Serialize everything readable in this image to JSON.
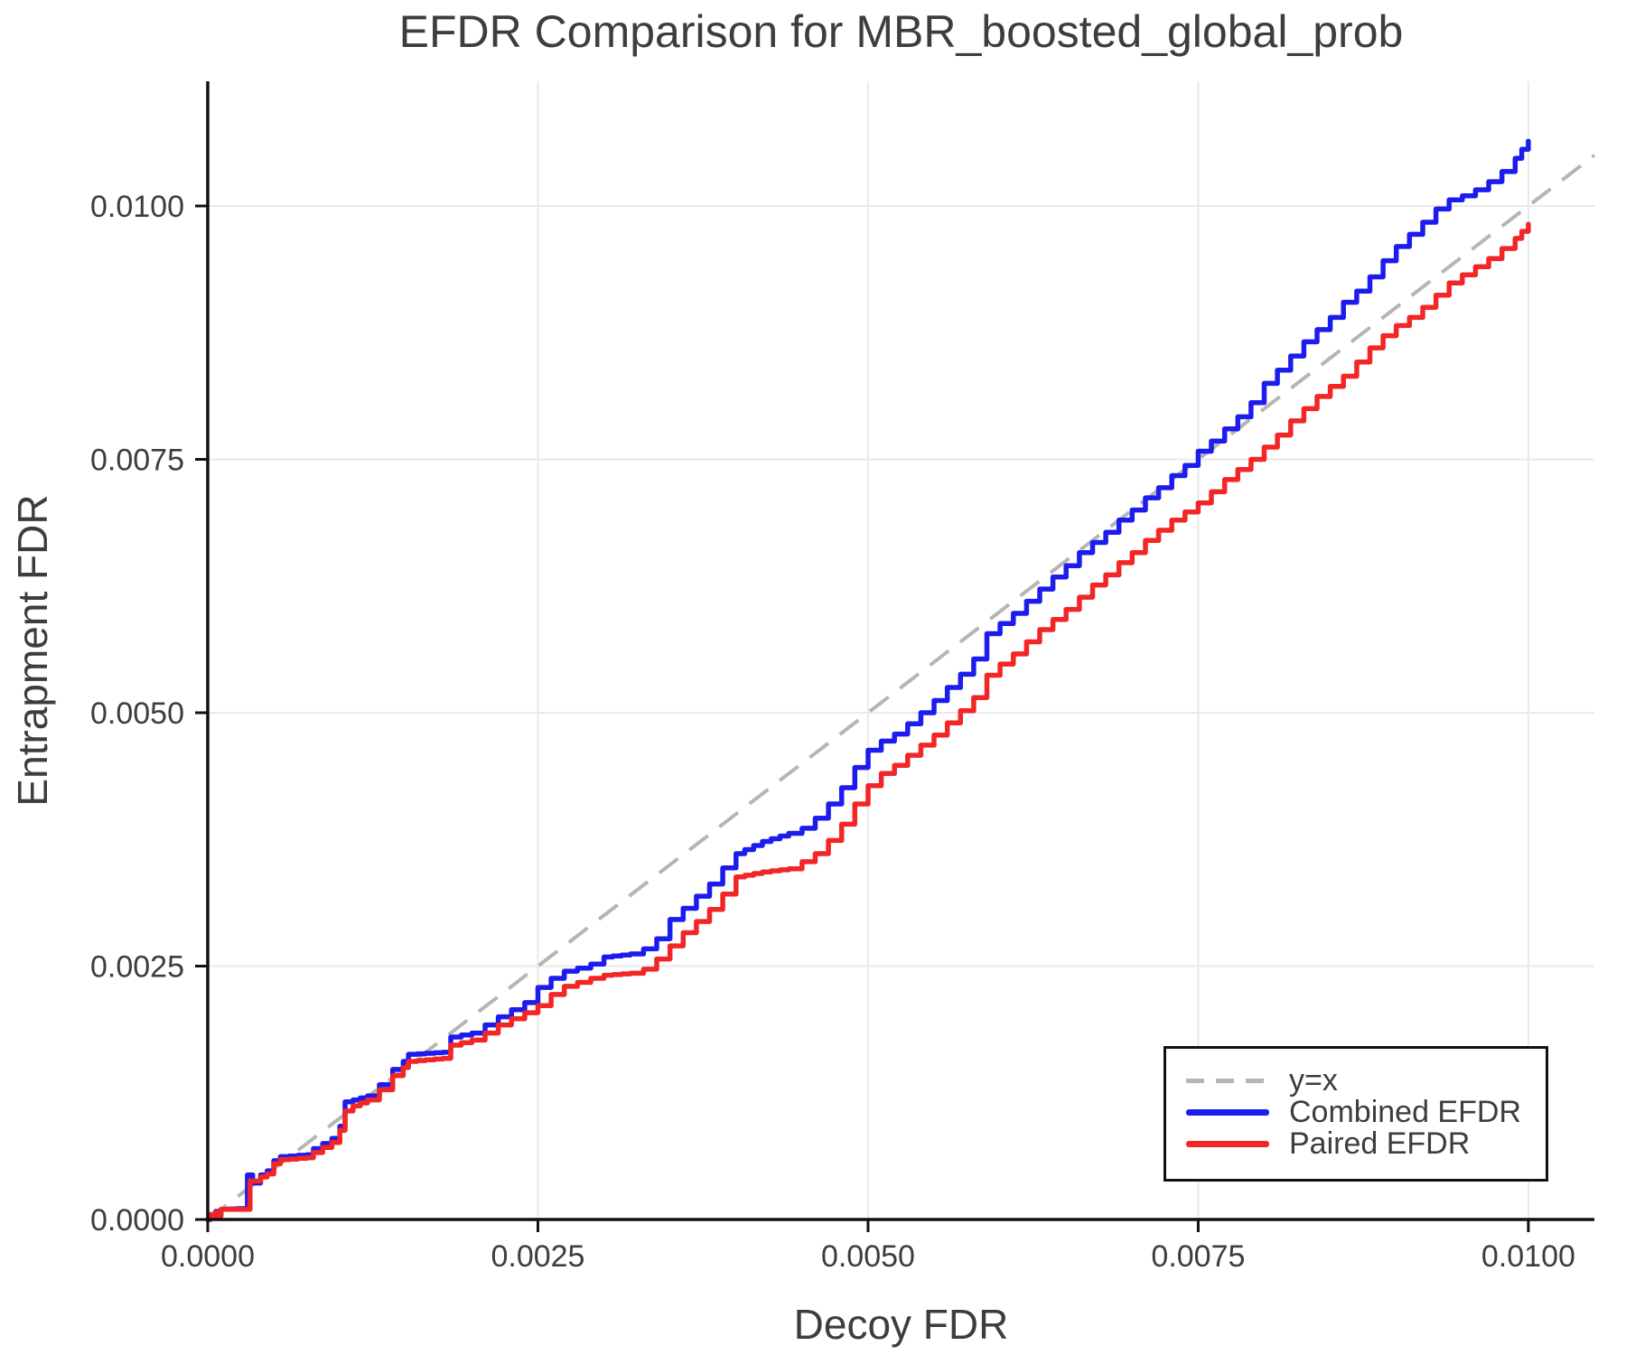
{
  "title": "EFDR Comparison for MBR_boosted_global_prob",
  "chart_data": {
    "type": "line",
    "title": "EFDR Comparison for MBR_boosted_global_prob",
    "xlabel": "Decoy FDR",
    "ylabel": "Entrapment FDR",
    "xlim": [
      0,
      0.0105
    ],
    "ylim": [
      0,
      0.01123
    ],
    "x_ticks": [
      0.0,
      0.0025,
      0.005,
      0.0075,
      0.01
    ],
    "x_tick_labels": [
      "0.0000",
      "0.0025",
      "0.0050",
      "0.0075",
      "0.0100"
    ],
    "y_ticks": [
      0.0,
      0.0025,
      0.005,
      0.0075,
      0.01
    ],
    "y_tick_labels": [
      "0.0000",
      "0.0025",
      "0.0050",
      "0.0075",
      "0.0100"
    ],
    "grid": true,
    "grid_color": "#e9e9e9",
    "legend_position": "lower right",
    "reference_line": {
      "label": "y=x",
      "style": "dashed",
      "color": "#b5b5b5",
      "from": [
        0,
        0
      ],
      "to": [
        0.0105,
        0.0105
      ]
    },
    "series": [
      {
        "name": "Combined EFDR",
        "color": "#1c1cee",
        "points": [
          [
            0,
            0
          ],
          [
            2e-05,
            4e-05
          ],
          [
            4e-05,
            2e-05
          ],
          [
            6e-05,
            8e-05
          ],
          [
            8e-05,
            4e-05
          ],
          [
            0.0001,
            0.0001
          ],
          [
            0.00028,
            0.00011
          ],
          [
            0.0003,
            0.00044
          ],
          [
            0.00034,
            0.00036
          ],
          [
            0.0004,
            0.00044
          ],
          [
            0.00045,
            0.00048
          ],
          [
            0.0005,
            0.00058
          ],
          [
            0.00055,
            0.00062
          ],
          [
            0.00075,
            0.00064
          ],
          [
            0.0008,
            0.0007
          ],
          [
            0.00094,
            0.0008
          ],
          [
            0.001,
            0.00092
          ],
          [
            0.00104,
            0.00116
          ],
          [
            0.0011,
            0.00118
          ],
          [
            0.00121,
            0.00122
          ],
          [
            0.0013,
            0.00133
          ],
          [
            0.0014,
            0.00148
          ],
          [
            0.00148,
            0.00156
          ],
          [
            0.00152,
            0.00163
          ],
          [
            0.00178,
            0.00165
          ],
          [
            0.00184,
            0.0018
          ],
          [
            0.002,
            0.00184
          ],
          [
            0.0021,
            0.00192
          ],
          [
            0.0022,
            0.002
          ],
          [
            0.0023,
            0.00207
          ],
          [
            0.0024,
            0.00214
          ],
          [
            0.0025,
            0.00229
          ],
          [
            0.0026,
            0.00238
          ],
          [
            0.0027,
            0.00245
          ],
          [
            0.0028,
            0.00248
          ],
          [
            0.0029,
            0.00252
          ],
          [
            0.003,
            0.00259
          ],
          [
            0.0032,
            0.00262
          ],
          [
            0.0033,
            0.00267
          ],
          [
            0.0034,
            0.00277
          ],
          [
            0.0035,
            0.00296
          ],
          [
            0.0036,
            0.00307
          ],
          [
            0.0037,
            0.00319
          ],
          [
            0.0038,
            0.00331
          ],
          [
            0.0039,
            0.00347
          ],
          [
            0.004,
            0.00361
          ],
          [
            0.0042,
            0.00373
          ],
          [
            0.0044,
            0.00381
          ],
          [
            0.0045,
            0.00386
          ],
          [
            0.0046,
            0.00396
          ],
          [
            0.0047,
            0.0041
          ],
          [
            0.0048,
            0.00426
          ],
          [
            0.0049,
            0.00446
          ],
          [
            0.005,
            0.00463
          ],
          [
            0.0051,
            0.00472
          ],
          [
            0.0052,
            0.00479
          ],
          [
            0.0053,
            0.00489
          ],
          [
            0.0054,
            0.005
          ],
          [
            0.0055,
            0.00512
          ],
          [
            0.0056,
            0.00525
          ],
          [
            0.0057,
            0.00538
          ],
          [
            0.0058,
            0.00553
          ],
          [
            0.0059,
            0.00578
          ],
          [
            0.006,
            0.00588
          ],
          [
            0.0061,
            0.00598
          ],
          [
            0.0062,
            0.0061
          ],
          [
            0.0063,
            0.00622
          ],
          [
            0.0064,
            0.00634
          ],
          [
            0.0065,
            0.00645
          ],
          [
            0.0066,
            0.00658
          ],
          [
            0.0067,
            0.00668
          ],
          [
            0.0068,
            0.00678
          ],
          [
            0.0069,
            0.0069
          ],
          [
            0.007,
            0.007
          ],
          [
            0.0071,
            0.00712
          ],
          [
            0.0072,
            0.00722
          ],
          [
            0.0073,
            0.00734
          ],
          [
            0.0074,
            0.00744
          ],
          [
            0.0075,
            0.00758
          ],
          [
            0.0076,
            0.00768
          ],
          [
            0.0077,
            0.0078
          ],
          [
            0.0078,
            0.00792
          ],
          [
            0.0079,
            0.00806
          ],
          [
            0.008,
            0.00825
          ],
          [
            0.0081,
            0.00838
          ],
          [
            0.0082,
            0.00852
          ],
          [
            0.0083,
            0.00866
          ],
          [
            0.0084,
            0.00878
          ],
          [
            0.0085,
            0.0089
          ],
          [
            0.0086,
            0.00905
          ],
          [
            0.0087,
            0.00916
          ],
          [
            0.0088,
            0.0093
          ],
          [
            0.0089,
            0.00946
          ],
          [
            0.009,
            0.0096
          ],
          [
            0.0091,
            0.00972
          ],
          [
            0.0092,
            0.00984
          ],
          [
            0.0093,
            0.00997
          ],
          [
            0.0094,
            0.01006
          ],
          [
            0.0095,
            0.0101
          ],
          [
            0.0096,
            0.01016
          ],
          [
            0.0097,
            0.01024
          ],
          [
            0.0098,
            0.01034
          ],
          [
            0.0099,
            0.01047
          ],
          [
            0.00995,
            0.01056
          ],
          [
            0.01,
            0.01064
          ]
        ]
      },
      {
        "name": "Paired EFDR",
        "color": "#f22626",
        "points": [
          [
            0,
            0
          ],
          [
            2e-05,
            5e-05
          ],
          [
            4e-05,
            2e-05
          ],
          [
            6e-05,
            7e-05
          ],
          [
            8e-05,
            3e-05
          ],
          [
            0.0001,
            0.0001
          ],
          [
            0.00029,
            0.0001
          ],
          [
            0.00032,
            0.00038
          ],
          [
            0.0004,
            0.00042
          ],
          [
            0.00045,
            0.00045
          ],
          [
            0.0005,
            0.00055
          ],
          [
            0.00055,
            0.00059
          ],
          [
            0.00075,
            0.00061
          ],
          [
            0.0008,
            0.00066
          ],
          [
            0.00094,
            0.00076
          ],
          [
            0.001,
            0.00088
          ],
          [
            0.00104,
            0.00107
          ],
          [
            0.0011,
            0.00112
          ],
          [
            0.00121,
            0.00118
          ],
          [
            0.0013,
            0.00128
          ],
          [
            0.0014,
            0.00142
          ],
          [
            0.00148,
            0.0015
          ],
          [
            0.00152,
            0.00156
          ],
          [
            0.00178,
            0.00159
          ],
          [
            0.00184,
            0.00172
          ],
          [
            0.002,
            0.00177
          ],
          [
            0.0021,
            0.00184
          ],
          [
            0.0022,
            0.00192
          ],
          [
            0.0023,
            0.00198
          ],
          [
            0.0024,
            0.00204
          ],
          [
            0.0025,
            0.00211
          ],
          [
            0.0026,
            0.00222
          ],
          [
            0.0027,
            0.0023
          ],
          [
            0.0028,
            0.00234
          ],
          [
            0.0029,
            0.00238
          ],
          [
            0.003,
            0.00241
          ],
          [
            0.0032,
            0.00243
          ],
          [
            0.0033,
            0.00247
          ],
          [
            0.0034,
            0.00257
          ],
          [
            0.0035,
            0.0027
          ],
          [
            0.0036,
            0.00283
          ],
          [
            0.0037,
            0.00294
          ],
          [
            0.0038,
            0.00306
          ],
          [
            0.0039,
            0.00321
          ],
          [
            0.004,
            0.00338
          ],
          [
            0.0042,
            0.00343
          ],
          [
            0.0044,
            0.00346
          ],
          [
            0.0045,
            0.00353
          ],
          [
            0.0046,
            0.00361
          ],
          [
            0.0047,
            0.00374
          ],
          [
            0.0048,
            0.0039
          ],
          [
            0.0049,
            0.0041
          ],
          [
            0.005,
            0.00428
          ],
          [
            0.0051,
            0.0044
          ],
          [
            0.0052,
            0.00448
          ],
          [
            0.0053,
            0.00458
          ],
          [
            0.0054,
            0.00468
          ],
          [
            0.0055,
            0.00478
          ],
          [
            0.0056,
            0.0049
          ],
          [
            0.0057,
            0.00502
          ],
          [
            0.0058,
            0.00515
          ],
          [
            0.0059,
            0.00537
          ],
          [
            0.006,
            0.00548
          ],
          [
            0.0061,
            0.00558
          ],
          [
            0.0062,
            0.0057
          ],
          [
            0.0063,
            0.00582
          ],
          [
            0.0064,
            0.00592
          ],
          [
            0.0065,
            0.00602
          ],
          [
            0.0066,
            0.00614
          ],
          [
            0.0067,
            0.00626
          ],
          [
            0.0068,
            0.00636
          ],
          [
            0.0069,
            0.00648
          ],
          [
            0.007,
            0.00658
          ],
          [
            0.0071,
            0.0067
          ],
          [
            0.0072,
            0.0068
          ],
          [
            0.0073,
            0.0069
          ],
          [
            0.0074,
            0.00698
          ],
          [
            0.0075,
            0.00707
          ],
          [
            0.0076,
            0.00718
          ],
          [
            0.0077,
            0.0073
          ],
          [
            0.0078,
            0.0074
          ],
          [
            0.0079,
            0.0075
          ],
          [
            0.008,
            0.00762
          ],
          [
            0.0081,
            0.00774
          ],
          [
            0.0082,
            0.00788
          ],
          [
            0.0083,
            0.008
          ],
          [
            0.0084,
            0.00812
          ],
          [
            0.0085,
            0.00822
          ],
          [
            0.0086,
            0.00832
          ],
          [
            0.0087,
            0.00846
          ],
          [
            0.0088,
            0.0086
          ],
          [
            0.0089,
            0.00872
          ],
          [
            0.009,
            0.00882
          ],
          [
            0.0091,
            0.0089
          ],
          [
            0.0092,
            0.009
          ],
          [
            0.0093,
            0.00912
          ],
          [
            0.0094,
            0.00924
          ],
          [
            0.0095,
            0.00932
          ],
          [
            0.0096,
            0.0094
          ],
          [
            0.0097,
            0.00948
          ],
          [
            0.0098,
            0.00958
          ],
          [
            0.0099,
            0.00968
          ],
          [
            0.00995,
            0.00975
          ],
          [
            0.01,
            0.00982
          ]
        ]
      }
    ],
    "style": {
      "text_color": "#3d3d3d",
      "spine_color": "#111111",
      "line_width": 5.5,
      "tick_font_size": 34,
      "label_font_size": 46,
      "title_font_size": 50
    }
  }
}
